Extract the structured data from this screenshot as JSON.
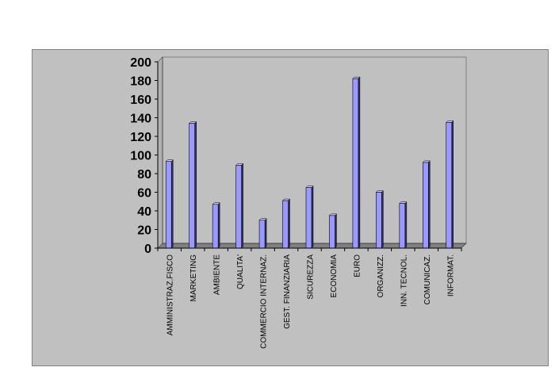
{
  "chart_data": {
    "type": "bar",
    "categories": [
      "AMMINISTRAZ.FISCO",
      "MARKETING",
      "AMBIENTE",
      "QUALITA'",
      "COMMERCIO INTERNAZ.",
      "GEST. FINANZIARIA",
      "SICUREZZA",
      "ECONOMIA",
      "EURO",
      "ORGANIZZ.",
      "INN. TECNOL.",
      "COMUNICAZ.",
      "INFORMAT."
    ],
    "values": [
      93,
      134,
      47,
      89,
      30,
      51,
      65,
      35,
      182,
      60,
      48,
      92,
      135
    ],
    "yticks": [
      0,
      20,
      40,
      60,
      80,
      100,
      120,
      140,
      160,
      180,
      200
    ],
    "ylim": [
      0,
      200
    ],
    "title": "",
    "xlabel": "",
    "ylabel": "",
    "grid": false,
    "colors": {
      "bar_front": "#9999ff",
      "bar_side": "#333366",
      "bar_top": "#ccccff",
      "background": "#c0c0c0",
      "floor": "#808080"
    }
  }
}
